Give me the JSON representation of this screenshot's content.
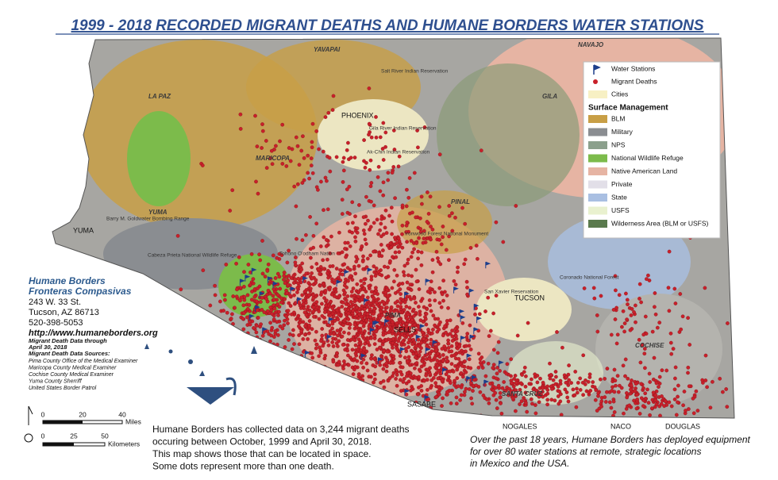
{
  "title": "1999 - 2018 RECORDED MIGRANT DEATHS AND HUMANE BORDERS WATER STATIONS",
  "legend": {
    "items": [
      "Water Stations",
      "Migrant Deaths",
      "Cities"
    ],
    "heading": "Surface Management",
    "land": [
      {
        "label": "BLM",
        "color": "#c89f46"
      },
      {
        "label": "Military",
        "color": "#8a8d91"
      },
      {
        "label": "NPS",
        "color": "#8ba08c"
      },
      {
        "label": "National Wildlife Refuge",
        "color": "#7cbb4b"
      },
      {
        "label": "Native American Land",
        "color": "#e6b4a3"
      },
      {
        "label": "Private",
        "color": "#e2dfe8"
      },
      {
        "label": "State",
        "color": "#a9bfe2"
      },
      {
        "label": "USFS",
        "color": "#e9f1cf"
      },
      {
        "label": "Wilderness Area (BLM or USFS)",
        "color": "#5a7a4d"
      }
    ]
  },
  "places": {
    "counties": [
      "YAVAPAI",
      "NAVAJO",
      "LA PAZ",
      "GILA",
      "MARICOPA",
      "PINAL",
      "YUMA",
      "PIMA",
      "COCHISE",
      "SANTA CRUZ"
    ],
    "cities": [
      "PHOENIX",
      "YUMA",
      "TUCSON",
      "SELLS",
      "SASABE",
      "NOGALES",
      "NACO",
      "DOUGLAS"
    ],
    "areas": [
      "Salt River Indian Reservation",
      "Gila River Indian Reservation",
      "Ak-Chin Indian Reservation",
      "Barry M. Goldwater Bombing Range",
      "Cabeza Prieta National Wildlife Refuge",
      "Tohono O'odham Nation",
      "Ironwood Forest National Monument",
      "San Xavier Reservation",
      "Coronado National Forest"
    ]
  },
  "organization": {
    "name": "Humane Borders",
    "name_es": "Fronteras Compasivas",
    "address": "243 W. 33 St.",
    "city": "Tucson, AZ 86713",
    "phone": "520-398-5053",
    "url": "http://www.humaneborders.org",
    "data_through": "Migrant Death Data through",
    "data_date": "April 30, 2018",
    "sources_heading": "Migrant Death Data Sources:",
    "sources": [
      "Pima County Office of the Medical Examiner",
      "Maricopa County Medical Examiner",
      "Cochise County Medical Examiner",
      "Yuma County Sherriff",
      "United States Border Patrol"
    ]
  },
  "scale": {
    "miles": [
      0,
      20,
      40
    ],
    "miles_unit": "Miles",
    "km": [
      0,
      25,
      50
    ],
    "km_unit": "Kilometers"
  },
  "captions": {
    "left": [
      "Humane Borders has collected data on 3,244 migrant deaths",
      "occuring between October, 1999 and April 30, 2018.",
      "This map shows those that can be located in space.",
      "Some dots represent more than one death."
    ],
    "right": [
      "Over the past 18 years, Humane Borders has deployed equipment",
      "for over 80 water stations at remote, strategic locations",
      "in Mexico and the USA."
    ]
  }
}
